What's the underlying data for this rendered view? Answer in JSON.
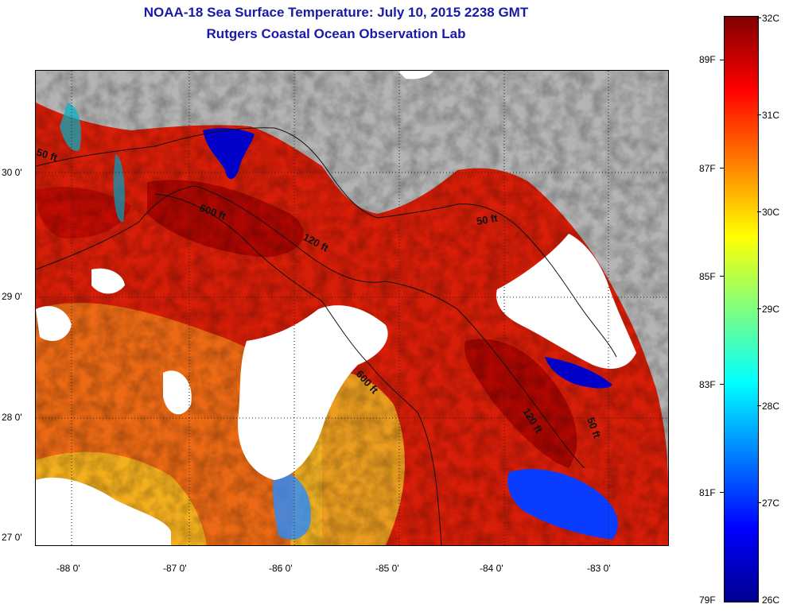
{
  "title": {
    "line1": "NOAA-18 Sea Surface Temperature:  July 10, 2015 2238 GMT",
    "line2": "Rutgers Coastal Ocean Observation Lab"
  },
  "map": {
    "lat_labels": [
      "30 0'",
      "29 0'",
      "28 0'",
      "27 0'"
    ],
    "lon_labels": [
      "-88 0'",
      "-87 0'",
      "-86 0'",
      "-85 0'",
      "-84 0'",
      "-83 0'"
    ],
    "contour_labels": [
      "50 ft",
      "600 ft",
      "120 ft",
      "50 ft",
      "600 ft",
      "120 ft",
      "50 ft"
    ],
    "colors": {
      "land": "#b4b4b4",
      "cloud": "#ffffff",
      "warm_sst": "#d80000",
      "cool_sst": "#0000c8"
    }
  },
  "colorbar": {
    "celsius_labels": [
      "32C",
      "31C",
      "30C",
      "29C",
      "28C",
      "27C",
      "26C"
    ],
    "fahrenheit_labels": [
      "89F",
      "87F",
      "85F",
      "83F",
      "81F",
      "79F"
    ],
    "colormap": "jet",
    "range_c": [
      26,
      32
    ]
  }
}
